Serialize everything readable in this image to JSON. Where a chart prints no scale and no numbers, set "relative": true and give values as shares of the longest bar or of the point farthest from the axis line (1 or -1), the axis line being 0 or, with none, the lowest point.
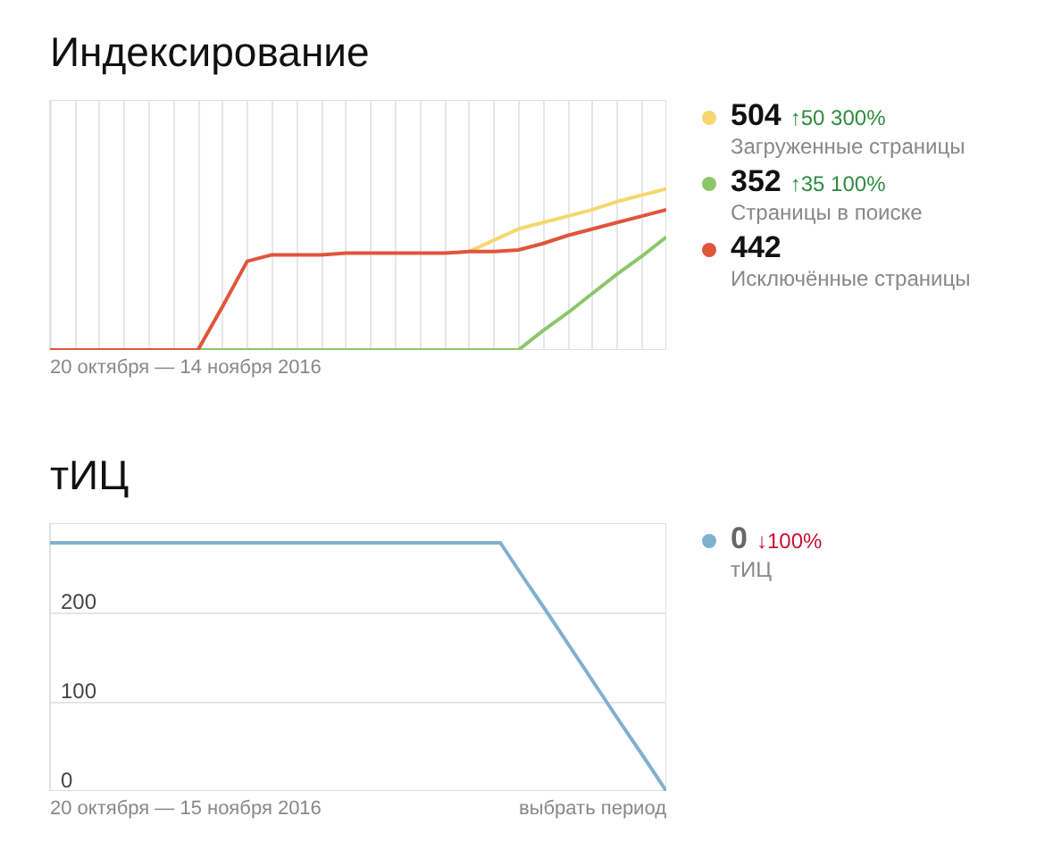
{
  "chart_data": [
    {
      "type": "line",
      "title": "Индексирование",
      "xlabel": "20 октября — 14 ноября 2016",
      "relative": true,
      "grid": "x",
      "legend": "right",
      "marker": "none",
      "categories": [
        null,
        null,
        null,
        null,
        null,
        null,
        null,
        null,
        null,
        null,
        null,
        null,
        null,
        null,
        null,
        null,
        null,
        null,
        null,
        null,
        null,
        null,
        null,
        null,
        null,
        null
      ],
      "series": [
        {
          "name": "Загруженные страницы",
          "color": "#f5d76e",
          "values": [
            null,
            null,
            null,
            null,
            null,
            null,
            null,
            null,
            null,
            null,
            null,
            null,
            null,
            null,
            null,
            null,
            null,
            0.61,
            0.68,
            0.75,
            0.79,
            0.83,
            0.87,
            0.92,
            0.96,
            1.0
          ]
        },
        {
          "name": "Страницы в поиске",
          "color": "#8cc66b",
          "values": [
            null,
            null,
            null,
            null,
            null,
            null,
            0,
            0,
            0,
            0,
            0,
            0,
            0,
            0,
            0,
            0,
            0,
            0,
            0,
            0,
            0.12,
            0.23,
            0.35,
            0.47,
            0.58,
            0.7
          ]
        },
        {
          "name": "Исключённые страницы",
          "color": "#e0553a",
          "values": [
            0,
            0,
            0,
            0,
            0,
            0,
            0,
            0.27,
            0.55,
            0.59,
            0.59,
            0.59,
            0.6,
            0.6,
            0.6,
            0.6,
            0.6,
            0.61,
            0.61,
            0.62,
            0.66,
            0.71,
            0.75,
            0.79,
            0.83,
            0.87
          ]
        }
      ],
      "annotations": [
        "504 ↑50 300%",
        "352 ↑35 100%",
        "442"
      ]
    },
    {
      "type": "line",
      "title": "тИЦ",
      "xlabel": "20 октября — 15 ноября 2016",
      "ylim": [
        0,
        300
      ],
      "yticks": [
        0,
        100,
        200
      ],
      "grid": "y",
      "legend": "right",
      "marker": "none",
      "categories": [
        null,
        null,
        null,
        null,
        null,
        null,
        null,
        null,
        null,
        null,
        null,
        null,
        null,
        null,
        null,
        null,
        null,
        null,
        null,
        null,
        null,
        null,
        null,
        null,
        null,
        null,
        null
      ],
      "series": [
        {
          "name": "тИЦ",
          "color": "#7fb1cf",
          "values": [
            278,
            278,
            278,
            278,
            278,
            278,
            278,
            278,
            278,
            278,
            278,
            278,
            278,
            278,
            278,
            278,
            278,
            278,
            278,
            278,
            238,
            199,
            159,
            119,
            79,
            40,
            0
          ]
        }
      ],
      "annotations": [
        "0 ↓100%",
        "выбрать период"
      ]
    }
  ]
}
